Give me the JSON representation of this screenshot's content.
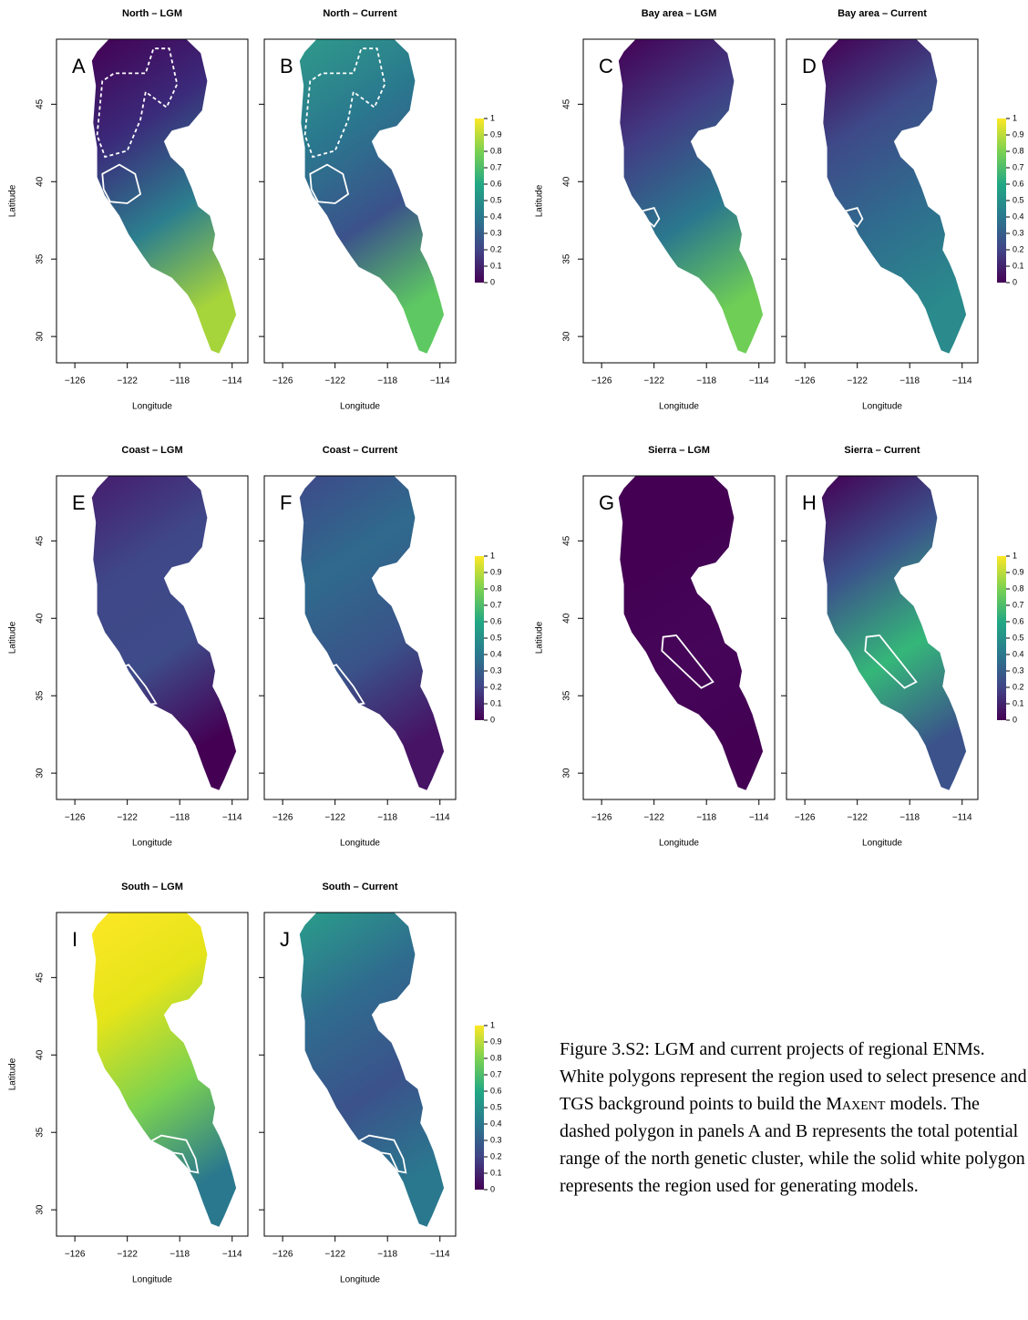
{
  "axes": {
    "xlabel": "Longitude",
    "ylabel": "Latitude",
    "xlim": [
      -127.4,
      -112.8
    ],
    "ylim": [
      28.3,
      49.2
    ],
    "xticks": [
      {
        "value": -126,
        "label": "−126"
      },
      {
        "value": -122,
        "label": "−122"
      },
      {
        "value": -118,
        "label": "−118"
      },
      {
        "value": -114,
        "label": "−114"
      }
    ],
    "yticks": [
      30,
      35,
      40,
      45
    ]
  },
  "colorbar": {
    "lim": [
      0,
      1
    ],
    "ticks": [
      0,
      0.1,
      0.2,
      0.3,
      0.4,
      0.5,
      0.6,
      0.7,
      0.8,
      0.9,
      1
    ]
  },
  "panels": [
    {
      "letter": "A",
      "title": "North – LGM"
    },
    {
      "letter": "B",
      "title": "North – Current"
    },
    {
      "letter": "C",
      "title": "Bay area – LGM"
    },
    {
      "letter": "D",
      "title": "Bay area – Current"
    },
    {
      "letter": "E",
      "title": "Coast – LGM"
    },
    {
      "letter": "F",
      "title": "Coast – Current"
    },
    {
      "letter": "G",
      "title": "Sierra – LGM"
    },
    {
      "letter": "H",
      "title": "Sierra – Current"
    },
    {
      "letter": "I",
      "title": "South – LGM"
    },
    {
      "letter": "J",
      "title": "South – Current"
    }
  ],
  "caption": {
    "before": "Figure 3.S2: LGM and current projects of regional ENMs. White polygons represent the region used to select presence and TGS background points to build the ",
    "smallcaps": "Maxent",
    "after": " models. The dashed polygon in panels A and B represents the total potential range of the north genetic cluster, while the solid white polygon represents the region used for generating models."
  }
}
